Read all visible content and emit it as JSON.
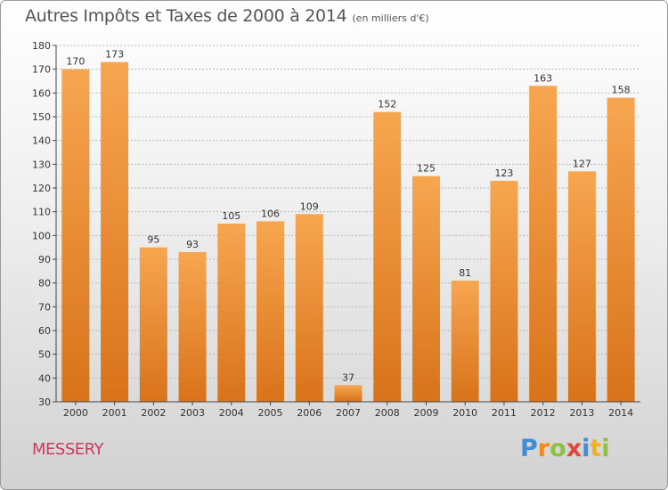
{
  "header": {
    "title": "Autres Impôts et Taxes de 2000 à 2014",
    "subtitle": "(en milliers d'€)"
  },
  "footer": {
    "commune": "MESSERY",
    "brand": "Proxiti",
    "brand_letters": [
      {
        "ch": "P",
        "color": "#3d8ed6"
      },
      {
        "ch": "r",
        "color": "#f08a1d"
      },
      {
        "ch": "o",
        "color": "#8cc23f"
      },
      {
        "ch": "x",
        "color": "#e8433a"
      },
      {
        "ch": "i",
        "color": "#3d8ed6"
      },
      {
        "ch": "t",
        "color": "#f0b21d"
      },
      {
        "ch": "i",
        "color": "#8cc23f"
      }
    ]
  },
  "colors": {
    "bar_top": "#f7a650",
    "bar_bottom": "#d8731a",
    "grid": "#b8b8b8",
    "axis": "#444444"
  },
  "chart_data": {
    "type": "bar",
    "title": "Autres Impôts et Taxes de 2000 à 2014",
    "subtitle": "(en milliers d'€)",
    "categories": [
      "2000",
      "2001",
      "2002",
      "2003",
      "2004",
      "2005",
      "2006",
      "2007",
      "2008",
      "2009",
      "2010",
      "2011",
      "2012",
      "2013",
      "2014"
    ],
    "values": [
      170,
      173,
      95,
      93,
      105,
      106,
      109,
      37,
      152,
      125,
      81,
      123,
      163,
      127,
      158
    ],
    "ylim": [
      30,
      180
    ],
    "yticks": [
      30,
      40,
      50,
      60,
      70,
      80,
      90,
      100,
      110,
      120,
      130,
      140,
      150,
      160,
      170,
      180
    ],
    "grid": true,
    "data_labels": true
  }
}
